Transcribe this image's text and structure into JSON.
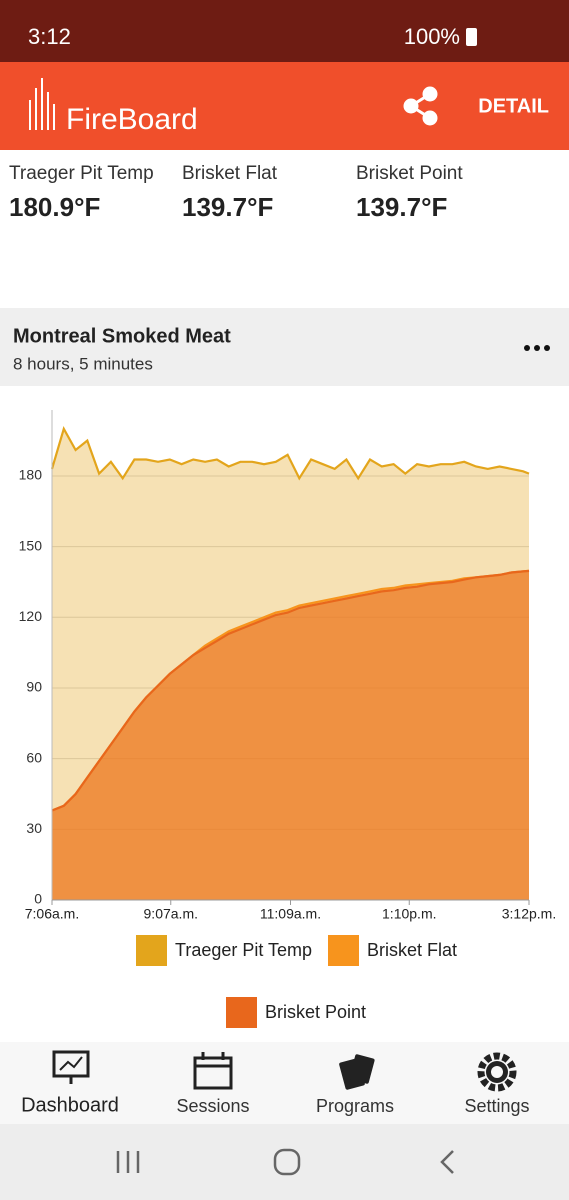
{
  "status_bar": {
    "time": "3:12",
    "battery": "100%"
  },
  "app_bar": {
    "brand": "FireBoard",
    "action": "DETAIL"
  },
  "probes": [
    {
      "name": "Traeger Pit Temp",
      "temp": "180.9°F"
    },
    {
      "name": "Brisket Flat",
      "temp": "139.7°F"
    },
    {
      "name": "Brisket Point",
      "temp": "139.7°F"
    }
  ],
  "session": {
    "title": "Montreal Smoked Meat",
    "duration": "8 hours, 5 minutes"
  },
  "chart_data": {
    "type": "line",
    "x": [
      0,
      12,
      24,
      36,
      48,
      60,
      72,
      84,
      96,
      108,
      120,
      132,
      144,
      156,
      168,
      180,
      192,
      204,
      216,
      228,
      240,
      252,
      264,
      276,
      288,
      300,
      312,
      324,
      336,
      348,
      360,
      372,
      384,
      396,
      408,
      420,
      432,
      444,
      456,
      468,
      480,
      486
    ],
    "series": [
      {
        "name": "Traeger Pit Temp",
        "color": "#e3a51c",
        "values": [
          183,
          200,
          191,
          195,
          181,
          186,
          179,
          187,
          187,
          186,
          187,
          185,
          187,
          186,
          187,
          184,
          186,
          186,
          185,
          186,
          189,
          179,
          187,
          185,
          183,
          187,
          179,
          187,
          184,
          185,
          181,
          185,
          184,
          185,
          185,
          186,
          184,
          183,
          184,
          183,
          182,
          181
        ]
      },
      {
        "name": "Brisket Flat",
        "color": "#f7941d",
        "values": [
          38,
          40,
          45,
          52,
          59,
          66,
          73,
          80,
          86,
          91,
          96,
          100,
          104,
          108,
          111,
          114,
          116,
          118,
          120,
          122,
          123,
          125,
          126,
          127,
          128,
          129,
          130,
          131,
          132,
          132.5,
          133.5,
          134,
          134.5,
          135,
          135.5,
          136.5,
          137,
          137.5,
          138,
          139,
          139.5,
          139.7
        ]
      },
      {
        "name": "Brisket Point",
        "color": "#e8671c",
        "values": [
          38,
          40,
          45,
          52,
          59,
          66,
          73,
          80,
          86,
          91,
          96,
          100,
          104,
          107,
          110,
          113,
          115,
          117,
          119,
          121,
          122,
          124,
          125,
          126,
          127,
          128,
          129,
          130,
          131,
          131.5,
          132.5,
          133,
          134,
          134.5,
          135,
          136,
          137,
          137.5,
          138,
          139,
          139.5,
          139.7
        ]
      }
    ],
    "xlim": [
      0,
      486
    ],
    "xticks": [
      {
        "value": 0,
        "label": "7:06a.m."
      },
      {
        "value": 121,
        "label": "9:07a.m."
      },
      {
        "value": 243,
        "label": "11:09a.m."
      },
      {
        "value": 364,
        "label": "1:10p.m."
      },
      {
        "value": 486,
        "label": "3:12p.m."
      }
    ],
    "ylim": [
      0,
      208
    ],
    "yticks": [
      0,
      30,
      60,
      90,
      120,
      150,
      180
    ],
    "grid": true,
    "fill": true
  },
  "nav": [
    {
      "label": "Dashboard"
    },
    {
      "label": "Sessions"
    },
    {
      "label": "Programs"
    },
    {
      "label": "Settings"
    }
  ]
}
